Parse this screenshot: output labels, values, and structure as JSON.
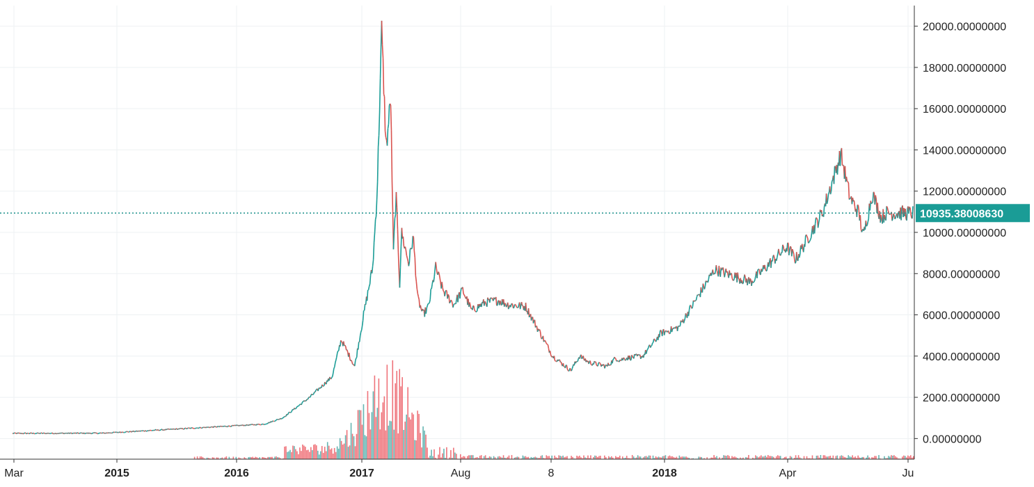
{
  "chart_data": {
    "type": "line",
    "y_axis": {
      "min": -1000,
      "max": 21000,
      "ticks": [
        0,
        2000,
        4000,
        6000,
        8000,
        10000,
        12000,
        14000,
        16000,
        18000,
        20000
      ],
      "tick_labels": [
        "0.00000000",
        "2000.00000000",
        "4000.00000000",
        "6000.00000000",
        "8000.00000000",
        "10000.00000000",
        "12000.00000000",
        "14000.00000000",
        "16000.00000000",
        "18000.00000000",
        "20000.00000000"
      ],
      "position": "right"
    },
    "x_axis": {
      "tick_labels": [
        "Mar",
        "2015",
        "2016",
        "2017",
        "Aug",
        "8",
        "2018",
        "Apr",
        "Ju"
      ],
      "bold_ticks": [
        "2015",
        "2016",
        "2017",
        "2018"
      ]
    },
    "grid": true,
    "last_price": {
      "value": 10935.3800863,
      "label": "10935.38008630"
    },
    "price_series": {
      "x": [
        0,
        0.1,
        0.28,
        0.3,
        0.33,
        0.355,
        0.365,
        0.38,
        0.39,
        0.4,
        0.405,
        0.41,
        0.415,
        0.42,
        0.423,
        0.426,
        0.43,
        0.432,
        0.44,
        0.445,
        0.45,
        0.456,
        0.462,
        0.47,
        0.478,
        0.49,
        0.5,
        0.51,
        0.525,
        0.54,
        0.55,
        0.57,
        0.6,
        0.62,
        0.63,
        0.64,
        0.65,
        0.66,
        0.67,
        0.675,
        0.68,
        0.7,
        0.72,
        0.74,
        0.78,
        0.82,
        0.86,
        0.87,
        0.9,
        0.92,
        0.93,
        0.94,
        0.945,
        0.955,
        0.965,
        0.97,
        0.98,
        0.985,
        0.99,
        0.995,
        1.0
      ],
      "y": [
        250,
        260,
        700,
        1000,
        2000,
        3000,
        4800,
        3500,
        6000,
        8300,
        12000,
        19800,
        14000,
        16500,
        9000,
        11800,
        7500,
        10000,
        8500,
        9800,
        6800,
        6000,
        6400,
        8300,
        7200,
        6500,
        7200,
        6200,
        6600,
        6700,
        6500,
        6400,
        4000,
        3300,
        4000,
        3700,
        3600,
        3500,
        3900,
        3800,
        3900,
        4000,
        5100,
        5400,
        8200,
        7600,
        9300,
        8700,
        11000,
        13800,
        11700,
        10935,
        9800,
        11900,
        10700,
        10935,
        10935,
        10935,
        10935,
        10935,
        10935
      ]
    }
  }
}
